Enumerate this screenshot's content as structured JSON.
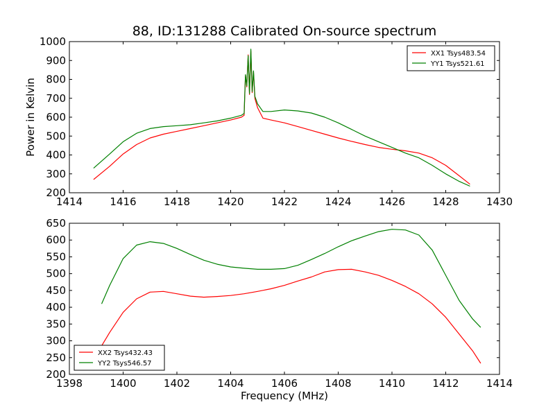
{
  "figure": {
    "title": "88, ID:131288 Calibrated On-source spectrum",
    "ylabel": "Power in Kelvin",
    "xlabel": "Frequency (MHz)"
  },
  "chart_data": [
    {
      "type": "line",
      "xlim": [
        1414,
        1430
      ],
      "ylim": [
        200,
        1000
      ],
      "xticks": [
        1414,
        1416,
        1418,
        1420,
        1422,
        1424,
        1426,
        1428,
        1430
      ],
      "yticks": [
        200,
        300,
        400,
        500,
        600,
        700,
        800,
        900,
        1000
      ],
      "legend_position": "top-right",
      "series": [
        {
          "name": "XX1 Tsys483.54",
          "color": "#ff0000",
          "x": [
            1414.9,
            1415.5,
            1416.0,
            1416.5,
            1417.0,
            1417.5,
            1418.0,
            1418.5,
            1419.0,
            1419.5,
            1420.0,
            1420.4,
            1420.5,
            1420.55,
            1420.6,
            1420.65,
            1420.7,
            1420.75,
            1420.8,
            1420.85,
            1420.9,
            1421.0,
            1421.2,
            1421.5,
            1422.0,
            1422.5,
            1423.0,
            1423.5,
            1424.0,
            1424.5,
            1425.0,
            1425.5,
            1426.0,
            1426.5,
            1427.0,
            1427.5,
            1428.0,
            1428.5,
            1428.9
          ],
          "y": [
            270,
            340,
            405,
            455,
            490,
            510,
            525,
            540,
            555,
            570,
            585,
            600,
            610,
            820,
            760,
            930,
            720,
            950,
            730,
            840,
            700,
            650,
            595,
            585,
            570,
            550,
            530,
            510,
            490,
            472,
            455,
            440,
            430,
            422,
            410,
            385,
            345,
            290,
            245
          ]
        },
        {
          "name": "YY1 Tsys521.61",
          "color": "#008000",
          "x": [
            1414.9,
            1415.5,
            1416.0,
            1416.5,
            1417.0,
            1417.5,
            1418.0,
            1418.5,
            1419.0,
            1419.5,
            1420.0,
            1420.4,
            1420.5,
            1420.55,
            1420.6,
            1420.65,
            1420.7,
            1420.75,
            1420.8,
            1420.85,
            1420.9,
            1421.0,
            1421.2,
            1421.5,
            1422.0,
            1422.5,
            1423.0,
            1423.5,
            1424.0,
            1424.5,
            1425.0,
            1425.5,
            1426.0,
            1426.5,
            1427.0,
            1427.5,
            1428.0,
            1428.5,
            1428.9
          ],
          "y": [
            330,
            405,
            470,
            515,
            540,
            550,
            555,
            560,
            570,
            580,
            595,
            610,
            620,
            825,
            765,
            925,
            725,
            960,
            735,
            845,
            710,
            670,
            630,
            630,
            638,
            633,
            622,
            600,
            570,
            535,
            500,
            470,
            440,
            410,
            385,
            345,
            300,
            260,
            235
          ]
        }
      ]
    },
    {
      "type": "line",
      "xlim": [
        1398,
        1414
      ],
      "ylim": [
        200,
        650
      ],
      "xticks": [
        1398,
        1400,
        1402,
        1404,
        1406,
        1408,
        1410,
        1412,
        1414
      ],
      "yticks": [
        200,
        250,
        300,
        350,
        400,
        450,
        500,
        550,
        600,
        650
      ],
      "legend_position": "bottom-left",
      "series": [
        {
          "name": "XX2 Tsys432.43",
          "color": "#ff0000",
          "x": [
            1399.2,
            1399.5,
            1400.0,
            1400.5,
            1401.0,
            1401.5,
            1402.0,
            1402.5,
            1403.0,
            1403.5,
            1404.0,
            1404.5,
            1405.0,
            1405.5,
            1406.0,
            1406.5,
            1407.0,
            1407.5,
            1408.0,
            1408.5,
            1409.0,
            1409.5,
            1410.0,
            1410.5,
            1411.0,
            1411.5,
            1412.0,
            1412.5,
            1413.0,
            1413.3
          ],
          "y": [
            285,
            325,
            385,
            425,
            445,
            447,
            440,
            433,
            430,
            432,
            435,
            440,
            447,
            455,
            465,
            478,
            490,
            505,
            512,
            513,
            505,
            495,
            480,
            462,
            440,
            410,
            370,
            320,
            270,
            233
          ]
        },
        {
          "name": "YY2 Tsys546.57",
          "color": "#008000",
          "x": [
            1399.2,
            1399.5,
            1400.0,
            1400.5,
            1401.0,
            1401.5,
            1402.0,
            1402.5,
            1403.0,
            1403.5,
            1404.0,
            1404.5,
            1405.0,
            1405.5,
            1406.0,
            1406.5,
            1407.0,
            1407.5,
            1408.0,
            1408.5,
            1409.0,
            1409.5,
            1410.0,
            1410.5,
            1411.0,
            1411.5,
            1412.0,
            1412.5,
            1413.0,
            1413.3
          ],
          "y": [
            410,
            465,
            545,
            585,
            595,
            590,
            575,
            557,
            540,
            528,
            520,
            516,
            513,
            513,
            515,
            525,
            542,
            560,
            580,
            598,
            612,
            625,
            632,
            630,
            615,
            570,
            495,
            420,
            365,
            340
          ]
        }
      ]
    }
  ]
}
